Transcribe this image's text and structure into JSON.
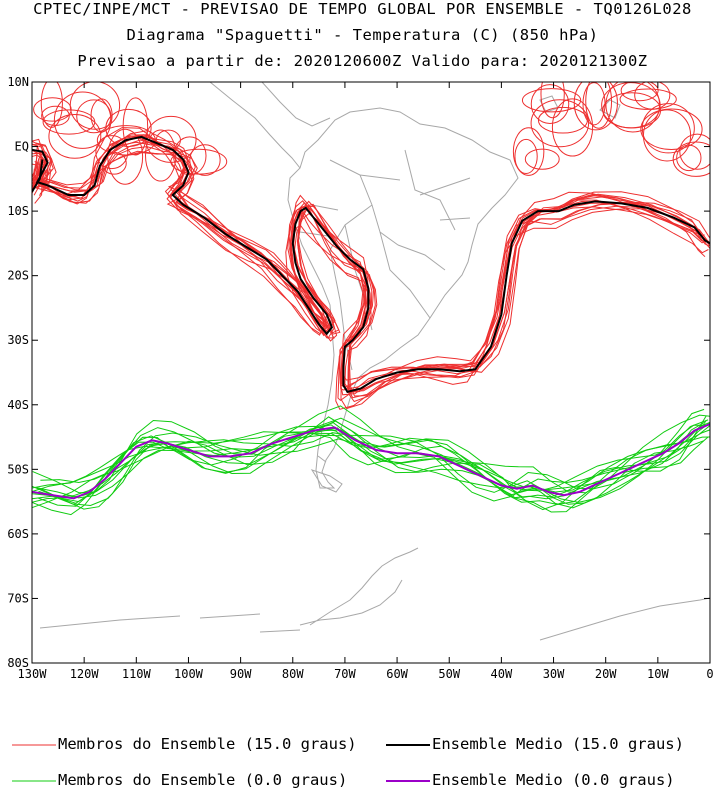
{
  "header": {
    "line1": "CPTEC/INPE/MCT - PREVISAO DE TEMPO GLOBAL POR ENSEMBLE - TQ0126L028",
    "line2": "Diagrama \"Spaguetti\" - Temperatura (C) (850 hPa)",
    "line3": "Previsao a partir de: 2020120600Z  Valido para: 2020121300Z"
  },
  "chart_data": {
    "type": "line",
    "title": "Diagrama \"Spaguetti\" - Temperatura (C) (850 hPa)",
    "x_range": [
      -130,
      0
    ],
    "y_range": [
      -80,
      10
    ],
    "x_ticks": [
      {
        "value": -130,
        "label": "130W"
      },
      {
        "value": -120,
        "label": "120W"
      },
      {
        "value": -110,
        "label": "110W"
      },
      {
        "value": -100,
        "label": "100W"
      },
      {
        "value": -90,
        "label": "90W"
      },
      {
        "value": -80,
        "label": "80W"
      },
      {
        "value": -70,
        "label": "70W"
      },
      {
        "value": -60,
        "label": "60W"
      },
      {
        "value": -50,
        "label": "50W"
      },
      {
        "value": -40,
        "label": "40W"
      },
      {
        "value": -30,
        "label": "30W"
      },
      {
        "value": -20,
        "label": "20W"
      },
      {
        "value": -10,
        "label": "10W"
      },
      {
        "value": 0,
        "label": "0"
      }
    ],
    "y_ticks": [
      {
        "value": 10,
        "label": "10N"
      },
      {
        "value": 0,
        "label": "EQ"
      },
      {
        "value": -10,
        "label": "10S"
      },
      {
        "value": -20,
        "label": "20S"
      },
      {
        "value": -30,
        "label": "30S"
      },
      {
        "value": -40,
        "label": "40S"
      },
      {
        "value": -50,
        "label": "50S"
      },
      {
        "value": -60,
        "label": "60S"
      },
      {
        "value": -70,
        "label": "70S"
      },
      {
        "value": -80,
        "label": "80S"
      }
    ],
    "series": [
      {
        "name": "Ensemble Medio (15.0 graus)",
        "color": "#000000",
        "segments": [
          [
            [
              -130,
              -0.5
            ],
            [
              -128,
              -0.8
            ],
            [
              -127,
              -2.5
            ],
            [
              -128,
              -4
            ],
            [
              -129,
              -5.5
            ],
            [
              -127,
              -6
            ],
            [
              -123,
              -7.5
            ],
            [
              -120,
              -7.5
            ],
            [
              -118,
              -6
            ],
            [
              -117,
              -3
            ],
            [
              -115,
              -0.5
            ],
            [
              -112,
              1
            ],
            [
              -109,
              1.5
            ],
            [
              -106,
              0.5
            ],
            [
              -103,
              -0.5
            ],
            [
              -101,
              -2
            ],
            [
              -100,
              -4
            ],
            [
              -101,
              -6
            ],
            [
              -103,
              -7.5
            ],
            [
              -101,
              -9
            ],
            [
              -97,
              -11
            ],
            [
              -93,
              -13.5
            ],
            [
              -89,
              -15.5
            ],
            [
              -85,
              -17.5
            ],
            [
              -82,
              -20
            ],
            [
              -79,
              -22.5
            ],
            [
              -77,
              -25
            ],
            [
              -75,
              -27.5
            ],
            [
              -73.5,
              -29
            ],
            [
              -72.5,
              -28
            ],
            [
              -73.5,
              -26
            ],
            [
              -76,
              -23.5
            ],
            [
              -78.5,
              -20.5
            ],
            [
              -79.5,
              -18
            ],
            [
              -80,
              -15
            ],
            [
              -79.5,
              -12
            ],
            [
              -78.5,
              -10
            ],
            [
              -77.5,
              -9.5
            ],
            [
              -76,
              -11
            ],
            [
              -74,
              -13
            ],
            [
              -71.5,
              -15.5
            ],
            [
              -69,
              -17.5
            ],
            [
              -66.5,
              -19
            ],
            [
              -65.5,
              -22
            ],
            [
              -65.5,
              -25
            ],
            [
              -66.5,
              -28
            ],
            [
              -68.5,
              -30
            ],
            [
              -70,
              -31
            ],
            [
              -70.3,
              -34
            ],
            [
              -70.3,
              -37
            ],
            [
              -69.5,
              -38
            ],
            [
              -67,
              -37.5
            ],
            [
              -64,
              -36
            ],
            [
              -60,
              -35
            ],
            [
              -56,
              -34.5
            ],
            [
              -52,
              -34.5
            ],
            [
              -48,
              -34.8
            ],
            [
              -45,
              -34.5
            ],
            [
              -42,
              -31
            ],
            [
              -40,
              -26
            ],
            [
              -39,
              -20
            ],
            [
              -38,
              -15
            ],
            [
              -36,
              -11.5
            ],
            [
              -33,
              -10
            ],
            [
              -29,
              -10
            ],
            [
              -26,
              -9
            ],
            [
              -22,
              -8.5
            ],
            [
              -17,
              -8.8
            ],
            [
              -12,
              -9.5
            ],
            [
              -7,
              -11
            ],
            [
              -3,
              -12.5
            ],
            [
              -1,
              -14.5
            ],
            [
              0,
              -15
            ]
          ],
          [
            [
              -130,
              -7
            ],
            [
              -128.5,
              -5
            ],
            [
              -128,
              -2
            ]
          ]
        ]
      },
      {
        "name": "Ensemble Medio (0.0 graus)",
        "color": "#9b00c8",
        "segments": [
          [
            [
              -130,
              -53.5
            ],
            [
              -126,
              -54
            ],
            [
              -122,
              -54.5
            ],
            [
              -119,
              -53.5
            ],
            [
              -116,
              -51.5
            ],
            [
              -113,
              -49
            ],
            [
              -110,
              -46.5
            ],
            [
              -107,
              -45.5
            ],
            [
              -104,
              -46
            ],
            [
              -100,
              -47
            ],
            [
              -96,
              -48
            ],
            [
              -92,
              -48
            ],
            [
              -88,
              -47.5
            ],
            [
              -84,
              -46
            ],
            [
              -80,
              -45
            ],
            [
              -76,
              -44
            ],
            [
              -72,
              -43.5
            ],
            [
              -68,
              -45.5
            ],
            [
              -64,
              -47
            ],
            [
              -60,
              -47.5
            ],
            [
              -56,
              -47.5
            ],
            [
              -52,
              -48
            ],
            [
              -48,
              -49.5
            ],
            [
              -44,
              -51
            ],
            [
              -40,
              -52.5
            ],
            [
              -37,
              -53
            ],
            [
              -34,
              -52.5
            ],
            [
              -31,
              -53.5
            ],
            [
              -28,
              -54
            ],
            [
              -25,
              -53.5
            ],
            [
              -21,
              -52
            ],
            [
              -17,
              -50.5
            ],
            [
              -13,
              -49
            ],
            [
              -9,
              -47.5
            ],
            [
              -6,
              -46
            ],
            [
              -3,
              -44
            ],
            [
              0,
              -43
            ]
          ]
        ]
      }
    ],
    "members": [
      {
        "name": "Membros do Ensemble (15.0 graus)",
        "color": "#ee3030",
        "count": 14
      },
      {
        "name": "Membros do Ensemble (0.0 graus)",
        "color": "#10cc10",
        "count": 14
      }
    ]
  },
  "legend": {
    "members_15": "Membros do Ensemble (15.0 graus)",
    "mean_15": "Ensemble Medio (15.0 graus)",
    "members_0": "Membros do Ensemble (0.0 graus)",
    "mean_0": "Ensemble Medio (0.0 graus)",
    "color_members_15": "#ee3030",
    "color_mean_15": "#000000",
    "color_members_0": "#10cc10",
    "color_mean_0": "#9b00c8"
  }
}
